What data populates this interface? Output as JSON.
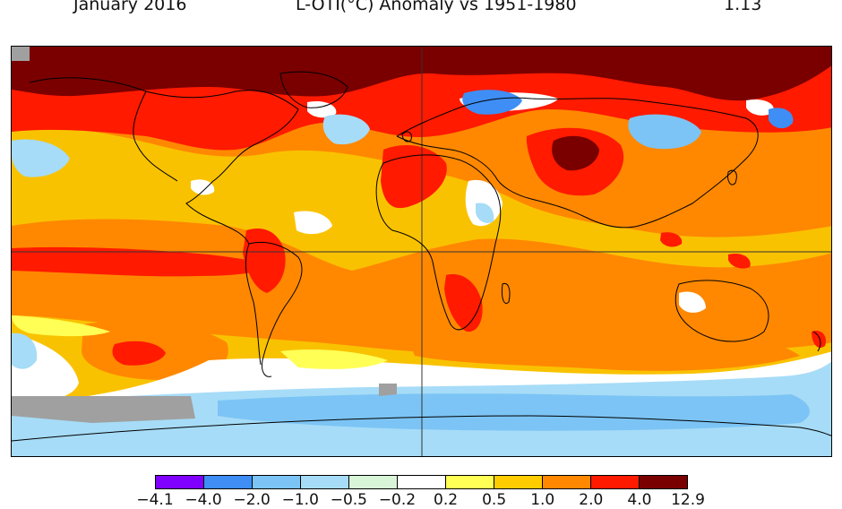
{
  "header": {
    "date": "January 2016",
    "title": "L-OTI(°C) Anomaly vs 1951-1980",
    "global_mean": "1.13"
  },
  "legend": {
    "ticks": [
      "−4.1",
      "−4.0",
      "−2.0",
      "−1.0",
      "−0.5",
      "−0.2",
      "0.2",
      "0.5",
      "1.0",
      "2.0",
      "4.0",
      "12.9"
    ],
    "colors": [
      "#8000ff",
      "#3e8ef5",
      "#7cc4f5",
      "#a6dcf7",
      "#d8f5d8",
      "#ffffff",
      "#ffff55",
      "#ffcc00",
      "#ff8800",
      "#ff1a00",
      "#7a0000"
    ]
  },
  "palette": {
    "dark_red": "#7a0000",
    "red": "#ff1a00",
    "orange": "#ff8800",
    "gold": "#ffc400",
    "yellow": "#ffff55",
    "white": "#ffffff",
    "pale": "#d8f5d8",
    "light_blue": "#a6dcf7",
    "sky": "#7cc4f5",
    "blue": "#3e8ef5",
    "no_data": "#a0a0a0"
  }
}
